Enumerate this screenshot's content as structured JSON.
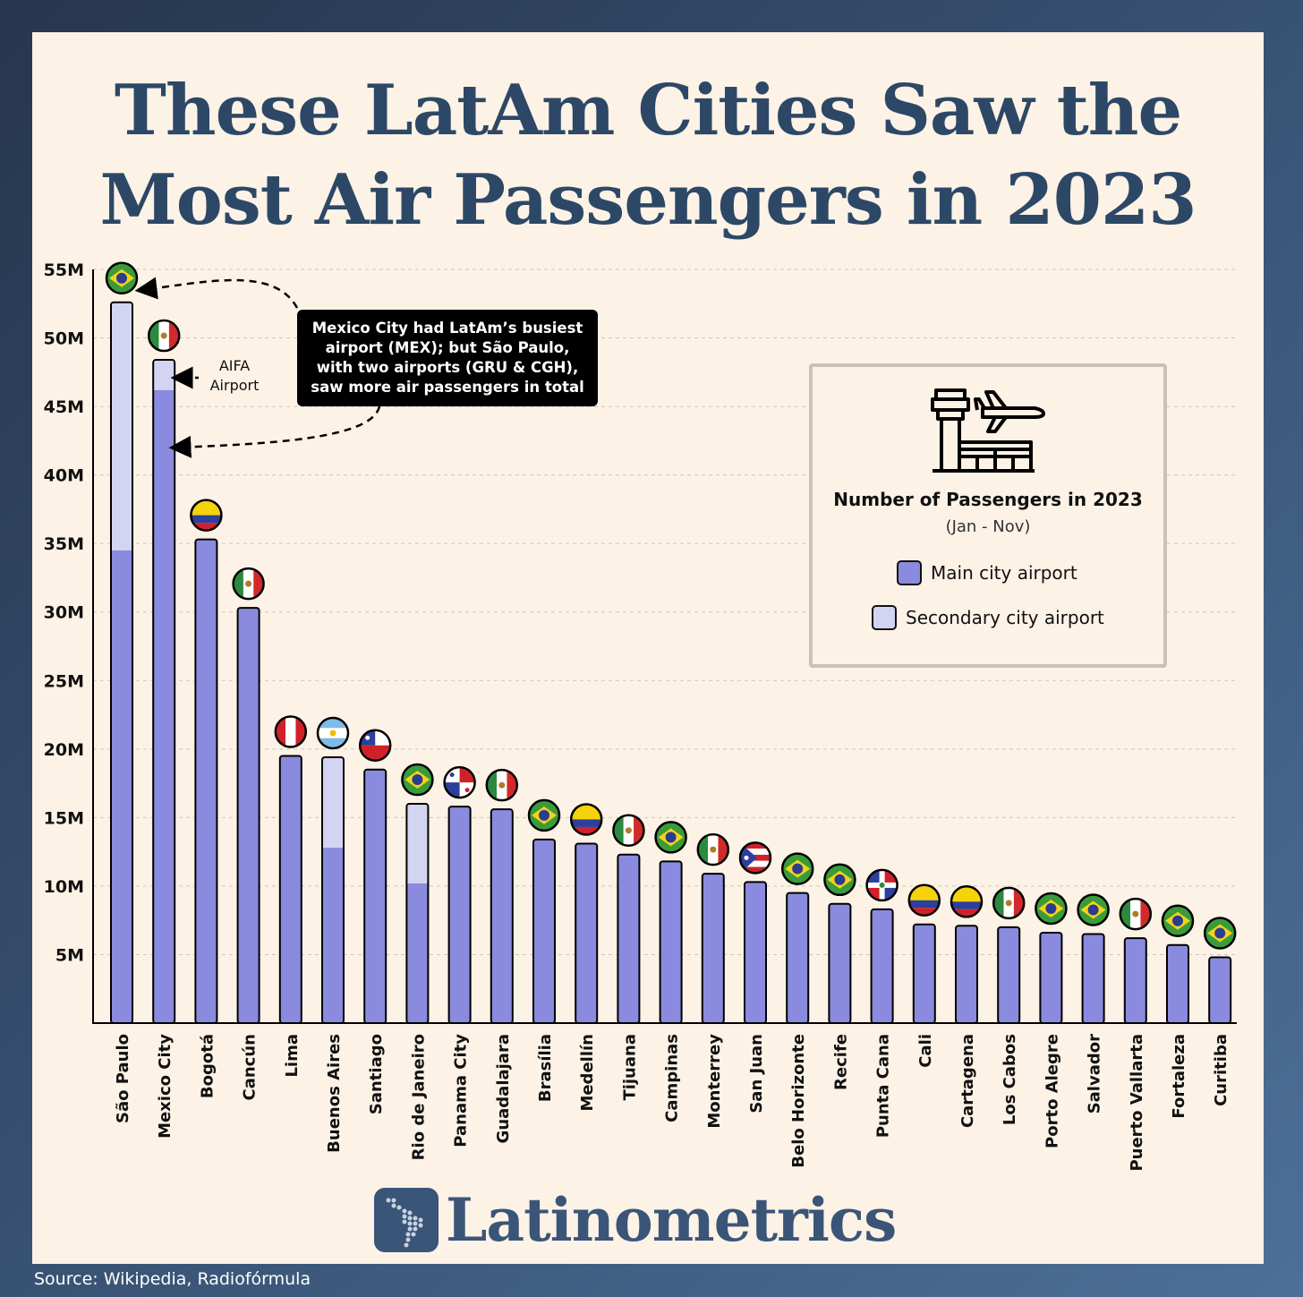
{
  "title_line1": "These LatAm Cities Saw the",
  "title_line2": "Most Air Passengers in 2023",
  "annotation": {
    "line1": "Mexico City had LatAm’s busiest",
    "line2": "airport (MEX); but São Paulo,",
    "line3": "with two airports (GRU & CGH),",
    "line4": "saw more air passengers in total"
  },
  "aifa_label": {
    "line1": "AIFA",
    "line2": "Airport"
  },
  "legend": {
    "icon": "airport-tower-plane-icon",
    "title": "Number of Passengers in 2023",
    "subtitle": "(Jan - Nov)",
    "main_label": "Main city airport",
    "secondary_label": "Secondary city airport"
  },
  "colors": {
    "main": "#8a8ade",
    "secondary": "#d3d3f2",
    "title": "#2d4866",
    "brand": "#3a5577",
    "panel": "#fdf2e6"
  },
  "chart_data": {
    "type": "bar",
    "stacked": true,
    "ylim": [
      0,
      55
    ],
    "yticks": [
      5,
      10,
      15,
      20,
      25,
      30,
      35,
      40,
      45,
      50,
      55
    ],
    "ytick_labels": [
      "5M",
      "10M",
      "15M",
      "20M",
      "25M",
      "30M",
      "35M",
      "40M",
      "45M",
      "50M",
      "55M"
    ],
    "grid": "horizontal dashed",
    "legend_position": "right",
    "categories": [
      "São Paulo",
      "Mexico City",
      "Bogotá",
      "Cancún",
      "Lima",
      "Buenos Aires",
      "Santiago",
      "Rio de Janeiro",
      "Panama City",
      "Guadalajara",
      "Brasília",
      "Medellín",
      "Tijuana",
      "Campinas",
      "Monterrey",
      "San Juan",
      "Belo Horizonte",
      "Recife",
      "Punta Cana",
      "Cali",
      "Cartagena",
      "Los Cabos",
      "Porto Alegre",
      "Salvador",
      "Puerto Vallarta",
      "Fortaleza",
      "Curitiba"
    ],
    "flags": [
      "brazil",
      "mexico",
      "colombia",
      "mexico",
      "peru",
      "argentina",
      "chile",
      "brazil",
      "panama",
      "mexico",
      "brazil",
      "colombia",
      "mexico",
      "brazil",
      "mexico",
      "puerto-rico",
      "brazil",
      "brazil",
      "dominican-republic",
      "colombia",
      "colombia",
      "mexico",
      "brazil",
      "brazil",
      "mexico",
      "brazil",
      "brazil"
    ],
    "series": [
      {
        "name": "Main city airport",
        "values": [
          34.5,
          46.2,
          35.3,
          30.3,
          19.5,
          12.8,
          18.5,
          10.2,
          15.8,
          15.6,
          13.4,
          13.1,
          12.3,
          11.8,
          10.9,
          10.3,
          9.5,
          8.7,
          8.3,
          7.2,
          7.1,
          7.0,
          6.6,
          6.5,
          6.2,
          5.7,
          4.8
        ]
      },
      {
        "name": "Secondary city airport",
        "values": [
          18.1,
          2.2,
          0,
          0,
          0,
          6.6,
          0,
          5.8,
          0,
          0,
          0,
          0,
          0,
          0,
          0,
          0,
          0,
          0,
          0,
          0,
          0,
          0,
          0,
          0,
          0,
          0,
          0
        ]
      }
    ]
  },
  "brand": "Latinometrics",
  "source": "Source: Wikipedia, Radiofórmula"
}
